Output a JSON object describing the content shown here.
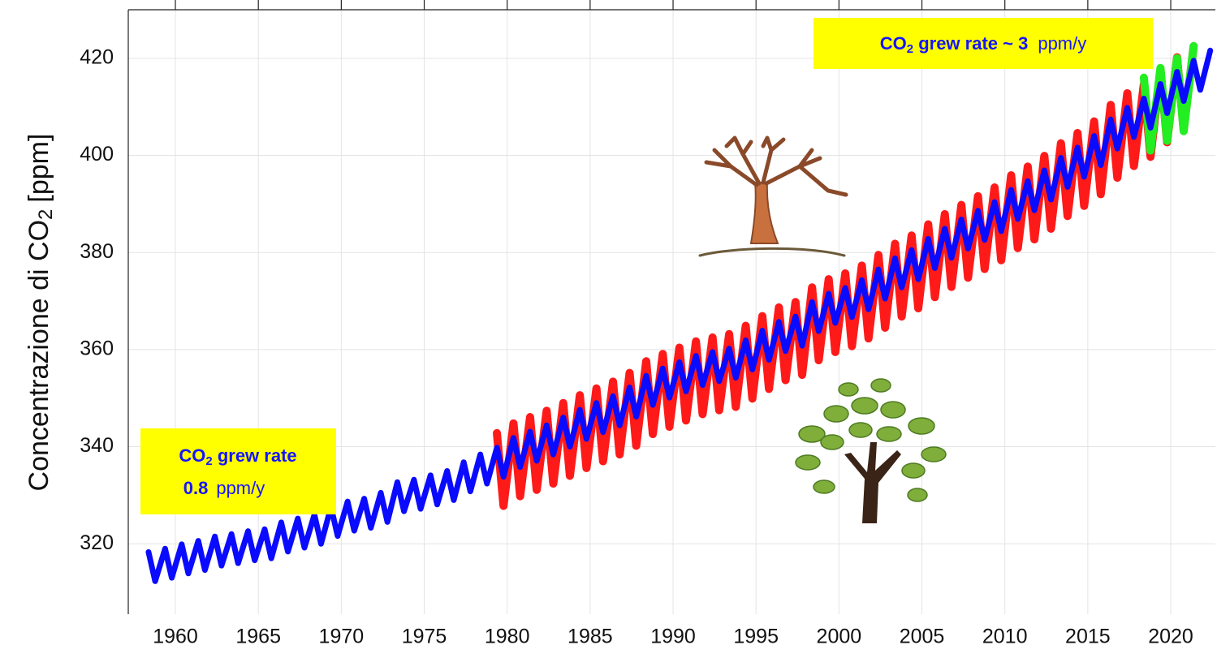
{
  "chart_data": {
    "type": "line",
    "ylabel": [
      "Concentrazione di CO",
      "2",
      "[ppm]"
    ],
    "annotations": [
      {
        "lines": [
          [
            "CO",
            "2",
            " grew rate ~ 3",
            "ppm/y"
          ]
        ]
      },
      {
        "lines": [
          [
            "CO",
            "2",
            " grew rate"
          ],
          [
            "0.8",
            "ppm/y"
          ]
        ]
      }
    ],
    "xlim": [
      1957.16,
      2022.69
    ],
    "ylim": [
      305.5,
      430
    ],
    "xticks": [
      1960,
      1965,
      1970,
      1975,
      1980,
      1985,
      1990,
      1995,
      2000,
      2005,
      2010,
      2015,
      2020
    ],
    "yticks": [
      320,
      340,
      360,
      380,
      400,
      420
    ],
    "grid": true,
    "x": [
      1958.38,
      1958.78,
      1959.38,
      1959.78,
      1960.38,
      1960.78,
      1961.38,
      1961.78,
      1962.38,
      1962.78,
      1963.38,
      1963.78,
      1964.38,
      1964.78,
      1965.38,
      1965.78,
      1966.38,
      1966.78,
      1967.38,
      1967.78,
      1968.38,
      1968.78,
      1969.38,
      1969.78,
      1970.38,
      1970.78,
      1971.38,
      1971.78,
      1972.38,
      1972.78,
      1973.38,
      1973.78,
      1974.38,
      1974.78,
      1975.38,
      1975.78,
      1976.38,
      1976.78,
      1977.38,
      1977.78,
      1978.38,
      1978.78,
      1979.38,
      1979.78,
      1980.38,
      1980.78,
      1981.38,
      1981.78,
      1982.38,
      1982.78,
      1983.38,
      1983.78,
      1984.38,
      1984.78,
      1985.38,
      1985.78,
      1986.38,
      1986.78,
      1987.38,
      1987.78,
      1988.38,
      1988.78,
      1989.38,
      1989.78,
      1990.38,
      1990.78,
      1991.38,
      1991.78,
      1992.38,
      1992.78,
      1993.38,
      1993.78,
      1994.38,
      1994.78,
      1995.38,
      1995.78,
      1996.38,
      1996.78,
      1997.38,
      1997.78,
      1998.38,
      1998.78,
      1999.38,
      1999.78,
      2000.38,
      2000.78,
      2001.38,
      2001.78,
      2002.38,
      2002.78,
      2003.38,
      2003.78,
      2004.38,
      2004.78,
      2005.38,
      2005.78,
      2006.38,
      2006.78,
      2007.38,
      2007.78,
      2008.38,
      2008.78,
      2009.38,
      2009.78,
      2010.38,
      2010.78,
      2011.38,
      2011.78,
      2012.38,
      2012.78,
      2013.38,
      2013.78,
      2014.38,
      2014.78,
      2015.38,
      2015.78,
      2016.38,
      2016.78,
      2017.38,
      2017.78,
      2018.38,
      2018.78,
      2019.38,
      2019.78,
      2020.38,
      2020.78,
      2021.38,
      2021.78,
      2022.38
    ],
    "series": [
      {
        "color": "#ff1a1a",
        "width": 10,
        "values": [
          null,
          null,
          null,
          null,
          null,
          null,
          null,
          null,
          null,
          null,
          null,
          null,
          null,
          null,
          null,
          null,
          null,
          null,
          null,
          null,
          null,
          null,
          null,
          null,
          null,
          null,
          null,
          null,
          null,
          null,
          null,
          null,
          null,
          null,
          null,
          null,
          null,
          null,
          null,
          null,
          null,
          null,
          342.8,
          327.8,
          344.8,
          329.8,
          346.1,
          331.1,
          347.4,
          332.4,
          349.0,
          334.0,
          350.6,
          335.6,
          352.0,
          337.0,
          353.4,
          338.4,
          355.2,
          340.2,
          357.6,
          342.6,
          359.1,
          344.1,
          360.4,
          345.4,
          361.7,
          346.7,
          362.5,
          347.5,
          363.2,
          348.2,
          364.9,
          349.9,
          366.9,
          351.9,
          368.7,
          353.7,
          369.8,
          354.8,
          372.8,
          357.8,
          374.5,
          359.5,
          375.7,
          360.7,
          377.3,
          362.3,
          379.5,
          364.5,
          381.8,
          366.8,
          383.5,
          368.5,
          385.8,
          370.8,
          387.9,
          372.9,
          389.8,
          374.8,
          391.6,
          376.6,
          393.4,
          378.4,
          395.9,
          380.9,
          397.7,
          382.7,
          399.9,
          384.9,
          402.5,
          387.5,
          404.6,
          389.6,
          407.0,
          392.0,
          410.4,
          395.4,
          412.8,
          397.8,
          414.7,
          399.7,
          417.7,
          402.7,
          420.2,
          405.2,
          422.5,
          null,
          null
        ]
      },
      {
        "color": "#22ee22",
        "width": 10,
        "values": [
          null,
          null,
          null,
          null,
          null,
          null,
          null,
          null,
          null,
          null,
          null,
          null,
          null,
          null,
          null,
          null,
          null,
          null,
          null,
          null,
          null,
          null,
          null,
          null,
          null,
          null,
          null,
          null,
          null,
          null,
          null,
          null,
          null,
          null,
          null,
          null,
          null,
          null,
          null,
          null,
          null,
          null,
          null,
          null,
          null,
          null,
          null,
          null,
          null,
          null,
          null,
          null,
          null,
          null,
          null,
          null,
          null,
          null,
          null,
          null,
          null,
          null,
          null,
          null,
          null,
          null,
          null,
          null,
          null,
          null,
          null,
          null,
          null,
          null,
          null,
          null,
          null,
          null,
          null,
          null,
          null,
          null,
          null,
          null,
          null,
          null,
          null,
          null,
          null,
          null,
          null,
          null,
          null,
          null,
          null,
          null,
          null,
          null,
          null,
          null,
          null,
          null,
          null,
          null,
          null,
          null,
          null,
          null,
          null,
          null,
          null,
          null,
          null,
          null,
          null,
          null,
          null,
          null,
          null,
          null,
          416.0,
          401.0,
          418.0,
          403.0,
          420.0,
          405.0,
          422.5,
          null,
          null
        ]
      },
      {
        "color": "#0a0aff",
        "width": 7,
        "values": [
          318.3,
          312.3,
          319.0,
          313.0,
          319.9,
          313.9,
          320.6,
          314.6,
          321.5,
          315.5,
          322.0,
          316.0,
          322.6,
          316.6,
          323.0,
          317.0,
          324.4,
          318.4,
          325.2,
          319.2,
          326.0,
          320.0,
          327.6,
          321.6,
          328.7,
          322.7,
          329.3,
          323.3,
          330.5,
          324.5,
          332.7,
          326.7,
          333.2,
          327.2,
          334.1,
          328.1,
          335.0,
          329.0,
          336.8,
          330.8,
          338.4,
          332.4,
          339.8,
          333.8,
          341.8,
          335.8,
          343.1,
          337.1,
          344.4,
          338.4,
          346.0,
          340.0,
          347.6,
          341.6,
          349.0,
          343.0,
          350.4,
          344.4,
          352.2,
          346.2,
          354.6,
          348.6,
          356.1,
          350.1,
          357.4,
          351.4,
          358.7,
          352.7,
          359.5,
          353.5,
          360.2,
          354.2,
          361.9,
          355.9,
          363.9,
          357.9,
          365.7,
          359.7,
          366.8,
          360.8,
          369.8,
          363.8,
          371.5,
          365.5,
          372.7,
          366.7,
          374.3,
          368.3,
          376.5,
          370.5,
          378.8,
          372.8,
          380.5,
          374.5,
          382.8,
          376.8,
          384.9,
          378.9,
          386.8,
          380.8,
          388.6,
          382.6,
          390.4,
          384.4,
          392.9,
          386.9,
          394.7,
          388.7,
          396.9,
          390.9,
          399.5,
          393.5,
          401.6,
          395.6,
          404.0,
          398.0,
          407.4,
          401.4,
          409.8,
          403.8,
          411.7,
          405.7,
          414.7,
          408.7,
          417.2,
          411.2,
          419.5,
          413.5,
          421.6
        ]
      }
    ]
  }
}
